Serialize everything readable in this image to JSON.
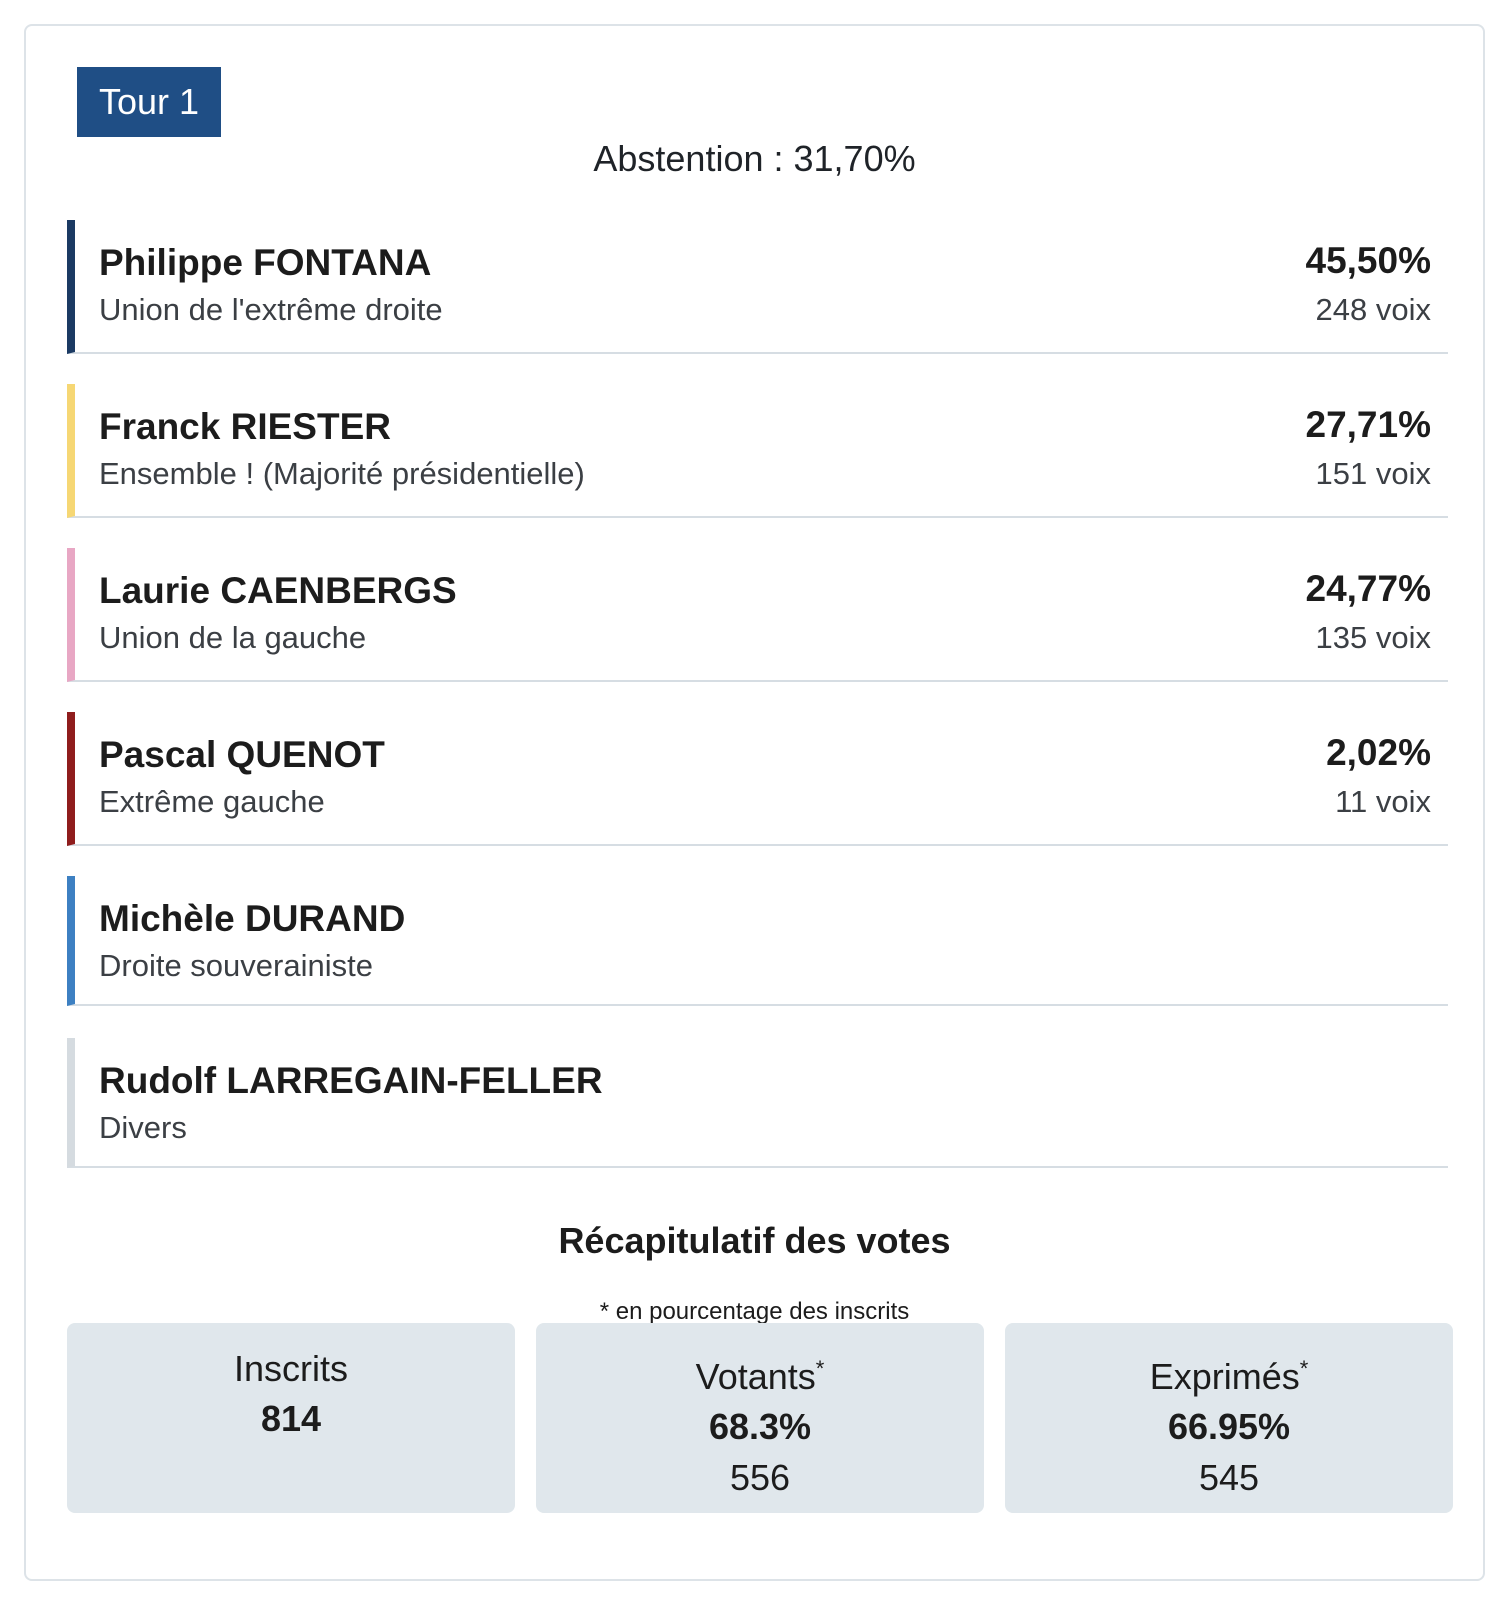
{
  "round": {
    "label": "Tour 1"
  },
  "abstention": {
    "text": "Abstention : 31,70%"
  },
  "candidates": [
    {
      "name": "Philippe FONTANA",
      "party": "Union de l'extrême droite",
      "pct": "45,50%",
      "votes": "248 voix",
      "color": "#1b3a63"
    },
    {
      "name": "Franck RIESTER",
      "party": "Ensemble ! (Majorité présidentielle)",
      "pct": "27,71%",
      "votes": "151 voix",
      "color": "#f6d774"
    },
    {
      "name": "Laurie CAENBERGS",
      "party": "Union de la gauche",
      "pct": "24,77%",
      "votes": "135 voix",
      "color": "#e8a7c4"
    },
    {
      "name": "Pascal QUENOT",
      "party": "Extrême gauche",
      "pct": "2,02%",
      "votes": "11 voix",
      "color": "#8f1d1d"
    },
    {
      "name": "Michèle DURAND",
      "party": "Droite souverainiste",
      "pct": "",
      "votes": "",
      "color": "#3d80c2"
    },
    {
      "name": "Rudolf LARREGAIN-FELLER",
      "party": "Divers",
      "pct": "",
      "votes": "",
      "color": "#d5dbe0"
    }
  ],
  "summary": {
    "title": "Récapitulatif des votes",
    "note": "* en pourcentage des inscrits",
    "inscrits": {
      "label": "Inscrits",
      "value": "814"
    },
    "votants": {
      "label": "Votants",
      "star": "*",
      "pct": "68.3%",
      "count": "556"
    },
    "exprimes": {
      "label": "Exprimés",
      "star": "*",
      "pct": "66.95%",
      "count": "545"
    }
  },
  "colors": {
    "badge": "#1f4e85",
    "box_bg": "#e0e7ec",
    "divider": "#d6dde3"
  }
}
